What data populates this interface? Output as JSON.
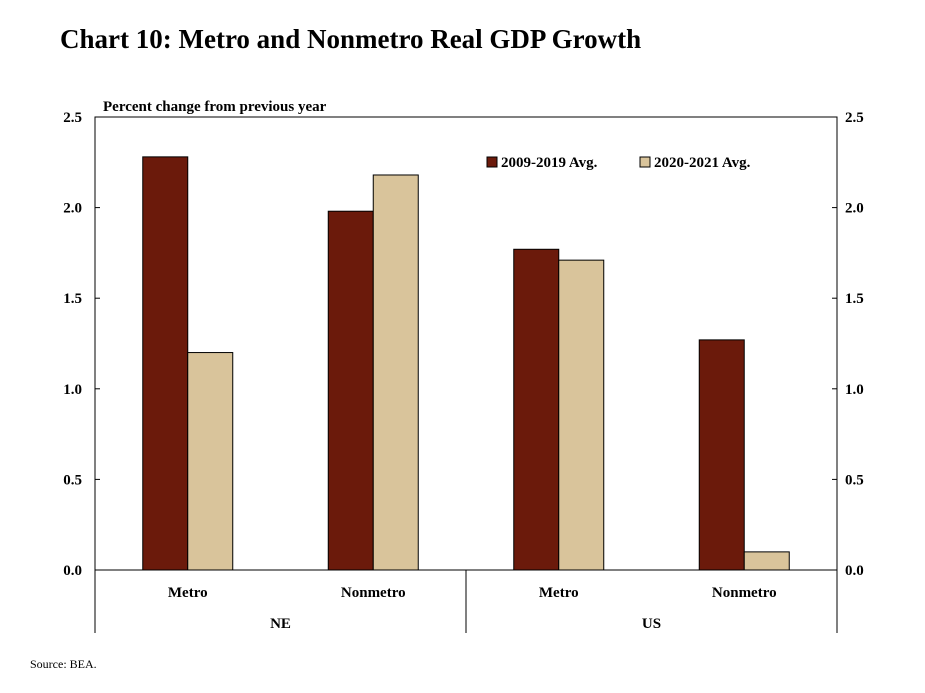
{
  "title": "Chart 10: Metro and Nonmetro Real GDP Growth",
  "source": "Source: BEA.",
  "chart_data": {
    "type": "bar",
    "ylabel": "Percent change from previous year",
    "ylim": [
      0,
      2.5
    ],
    "yticks": [
      "0.0",
      "0.5",
      "1.0",
      "1.5",
      "2.0",
      "2.5"
    ],
    "secondary_axis": true,
    "legend_position": "top-right",
    "groups": [
      "NE",
      "US"
    ],
    "categories": [
      "Metro",
      "Nonmetro",
      "Metro",
      "Nonmetro"
    ],
    "category_groups": [
      "NE",
      "NE",
      "US",
      "US"
    ],
    "series": [
      {
        "name": "2009-2019 Avg.",
        "color": "#6b1a0b",
        "values": [
          2.28,
          1.98,
          1.77,
          1.27
        ]
      },
      {
        "name": "2020-2021 Avg.",
        "color": "#d9c49b",
        "values": [
          1.2,
          2.18,
          1.71,
          0.1
        ]
      }
    ]
  }
}
